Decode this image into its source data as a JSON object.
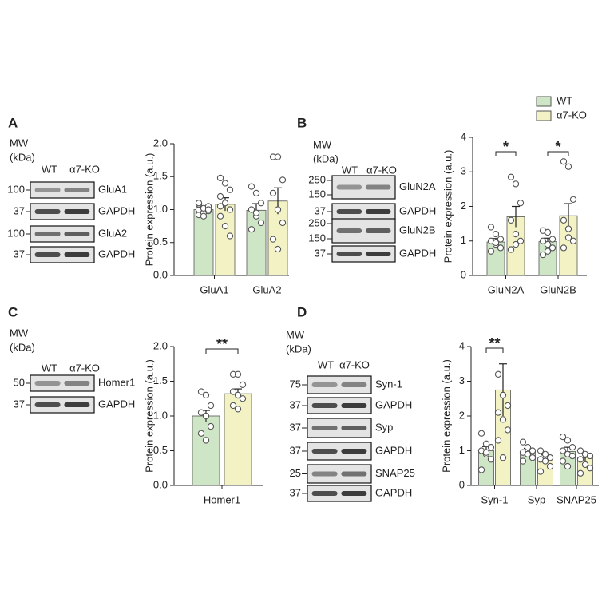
{
  "chart_data": [
    {
      "type": "bar",
      "ylabel": "Protein expression (a.u.)",
      "categories": [
        "GluA1",
        "GluA2"
      ],
      "series": [
        {
          "color": "#cfe6c6",
          "values": [
            1.0,
            0.99
          ],
          "errors": [
            0.04,
            0.1
          ],
          "points": [
            [
              0.92,
              0.95,
              0.98,
              1.0,
              1.02,
              1.05,
              1.08,
              0.9,
              1.0,
              1.1
            ],
            [
              1.35,
              1.25,
              1.1,
              1.0,
              0.9,
              0.8,
              0.7,
              0.95
            ]
          ]
        },
        {
          "color": "#f2f2c4",
          "values": [
            1.08,
            1.13
          ],
          "errors": [
            0.1,
            0.2
          ],
          "points": [
            [
              1.48,
              1.4,
              1.3,
              1.2,
              1.1,
              1.0,
              0.9,
              0.75,
              0.6,
              1.05
            ],
            [
              1.8,
              1.8,
              1.45,
              1.25,
              1.0,
              0.8,
              0.55,
              0.4
            ]
          ]
        }
      ],
      "ylim": [
        0,
        2
      ],
      "yticks": [
        {
          "value": 0,
          "label": "0.0"
        },
        0.5,
        {
          "value": 1,
          "label": "1.0"
        },
        1.5,
        {
          "value": 2,
          "label": "2.0"
        }
      ]
    },
    {
      "type": "bar",
      "ylabel": "Protein expression (a.u.)",
      "categories": [
        "GluN2A",
        "GluN2B"
      ],
      "series": [
        {
          "name": "WT",
          "color": "#cfe6c6",
          "values": [
            0.97,
            0.98
          ],
          "errors": [
            0.1,
            0.1
          ],
          "points": [
            [
              1.4,
              1.2,
              1.05,
              1.0,
              0.9,
              0.8,
              0.7,
              0.95
            ],
            [
              1.3,
              1.25,
              1.05,
              1.0,
              0.9,
              0.8,
              0.6,
              0.7
            ]
          ]
        },
        {
          "name": "α7-KO",
          "color": "#f2f2c4",
          "values": [
            1.7,
            1.73
          ],
          "errors": [
            0.3,
            0.35
          ],
          "points": [
            [
              2.85,
              2.65,
              2.1,
              1.6,
              1.2,
              1.0,
              0.75,
              0.9
            ],
            [
              3.3,
              3.15,
              2.2,
              1.6,
              1.35,
              1.0,
              0.8,
              1.1
            ]
          ]
        }
      ],
      "ylim": [
        0,
        4
      ],
      "yticks": [
        0,
        1,
        2,
        3,
        4
      ],
      "annotations": [
        {
          "text": "*",
          "category": 0
        },
        {
          "text": "*",
          "category": 1
        }
      ]
    },
    {
      "type": "bar",
      "ylabel": "Protein expression (a.u.)",
      "categories": [
        "Homer1"
      ],
      "series": [
        {
          "color": "#cfe6c6",
          "values": [
            1.0
          ],
          "errors": [
            0.08
          ],
          "points": [
            [
              1.35,
              1.3,
              1.15,
              1.05,
              1.0,
              0.85,
              0.75,
              0.65
            ]
          ]
        },
        {
          "color": "#f2f2c4",
          "values": [
            1.32
          ],
          "errors": [
            0.07
          ],
          "points": [
            [
              1.6,
              1.6,
              1.45,
              1.35,
              1.3,
              1.25,
              1.15,
              1.1
            ]
          ]
        }
      ],
      "ylim": [
        0,
        2
      ],
      "yticks": [
        {
          "value": 0,
          "label": "0.0"
        },
        0.5,
        {
          "value": 1,
          "label": "1.0"
        },
        1.5,
        {
          "value": 2,
          "label": "2.0"
        }
      ],
      "annotations": [
        {
          "text": "**",
          "category": 0
        }
      ]
    },
    {
      "type": "bar",
      "ylabel": "Protein expression (a.u.)",
      "categories": [
        "Syn-1",
        "Syp",
        "SNAP25"
      ],
      "series": [
        {
          "color": "#cfe6c6",
          "values": [
            1.0,
            0.97,
            0.98
          ],
          "errors": [
            0.12,
            0.1,
            0.12
          ],
          "points": [
            [
              1.5,
              1.2,
              1.1,
              1.0,
              0.9,
              0.75,
              0.45,
              0.95
            ],
            [
              1.25,
              1.1,
              1.0,
              0.95,
              0.9,
              0.8,
              0.7
            ],
            [
              1.4,
              1.3,
              1.1,
              1.0,
              0.9,
              0.85,
              0.7,
              0.55
            ]
          ]
        },
        {
          "color": "#f2f2c4",
          "values": [
            2.75,
            0.78,
            0.8
          ],
          "errors": [
            0.75,
            0.1,
            0.12
          ],
          "points": [
            [
              3.2,
              2.6,
              2.3,
              2.1,
              1.9,
              1.6,
              1.3,
              0.8
            ],
            [
              1.0,
              0.9,
              0.8,
              0.75,
              0.7,
              0.55,
              0.4
            ],
            [
              1.0,
              0.9,
              0.85,
              0.75,
              0.6,
              0.5,
              0.35
            ]
          ]
        }
      ],
      "ylim": [
        0,
        4
      ],
      "yticks": [
        0,
        1,
        2,
        3,
        4
      ],
      "annotations": [
        {
          "text": "**",
          "category": 0
        }
      ]
    }
  ],
  "blots": [
    {
      "panel": "A",
      "mw": "MW",
      "kda": "(kDa)",
      "lanes": [
        "WT",
        "α7-KO"
      ],
      "rows": [
        {
          "mw": [
            "100"
          ],
          "protein": "GluA1"
        },
        {
          "mw": [
            "37"
          ],
          "protein": "GAPDH"
        },
        {
          "mw": [
            "100"
          ],
          "protein": "GluA2"
        },
        {
          "mw": [
            "37"
          ],
          "protein": "GAPDH"
        }
      ]
    },
    {
      "panel": "B",
      "mw": "MW",
      "kda": "(kDa)",
      "lanes": [
        "WT",
        "α7-KO"
      ],
      "rows": [
        {
          "mw": [
            "250",
            "150"
          ],
          "protein": "GluN2A"
        },
        {
          "mw": [
            "37"
          ],
          "protein": "GAPDH"
        },
        {
          "mw": [
            "250",
            "150"
          ],
          "protein": "GluN2B"
        },
        {
          "mw": [
            "37"
          ],
          "protein": "GAPDH"
        }
      ]
    },
    {
      "panel": "C",
      "mw": "MW",
      "kda": "(kDa)",
      "lanes": [
        "WT",
        "α7-KO"
      ],
      "rows": [
        {
          "mw": [
            "50"
          ],
          "protein": "Homer1"
        },
        {
          "mw": [
            "37"
          ],
          "protein": "GAPDH"
        }
      ]
    },
    {
      "panel": "D",
      "mw": "MW",
      "kda": "(kDa)",
      "lanes": [
        "WT",
        "α7-KO"
      ],
      "rows": [
        {
          "mw": [
            "75"
          ],
          "protein": "Syn-1"
        },
        {
          "mw": [
            "37"
          ],
          "protein": "GAPDH"
        },
        {
          "mw": [
            "37"
          ],
          "protein": "Syp"
        },
        {
          "mw": [
            "37"
          ],
          "protein": "GAPDH"
        },
        {
          "mw": [
            "25"
          ],
          "protein": "SNAP25"
        },
        {
          "mw": [
            "37"
          ],
          "protein": "GAPDH"
        }
      ]
    }
  ]
}
